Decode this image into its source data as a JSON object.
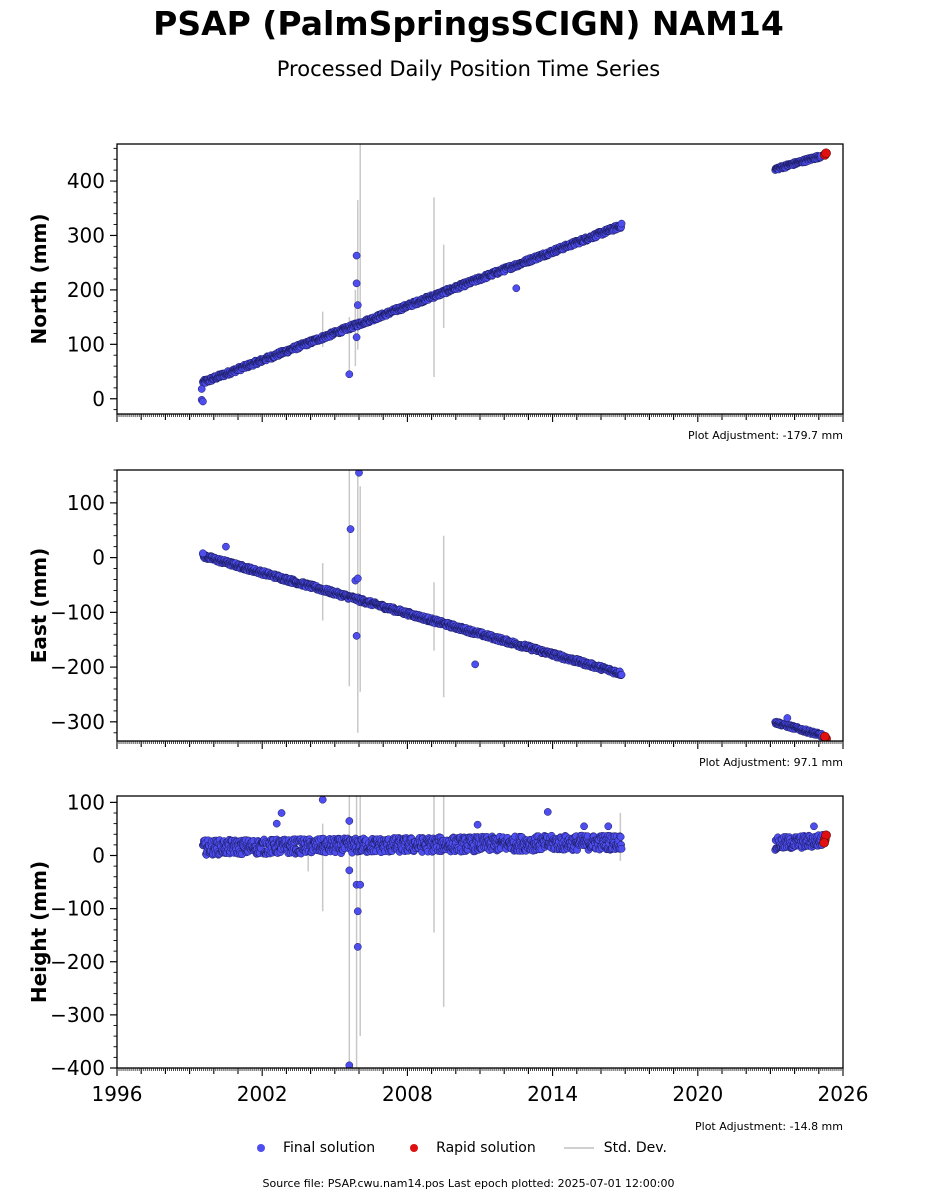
{
  "title": "PSAP (PalmSpringsSCIGN) NAM14",
  "subtitle": "Processed Daily Position Time Series",
  "colors": {
    "final": "#4d4df0",
    "final_edge": "#1a1a5a",
    "rapid": "#e01010",
    "std": "#c8c8c8"
  },
  "legend": {
    "final": "Final solution",
    "rapid": "Rapid solution",
    "std": "Std. Dev."
  },
  "footer": "Source file: PSAP.cwu.nam14.pos  Last epoch plotted: 2025-07-01 12:00:00",
  "chart_data": [
    {
      "type": "scatter",
      "ylabel": "North (mm)",
      "ylim": [
        -28,
        468
      ],
      "yticks": [
        0,
        100,
        200,
        300,
        400
      ],
      "xlim": [
        1996,
        2026
      ],
      "show_xticklabels": false,
      "adjustment": "Plot Adjustment: -179.7 mm",
      "final_segments": [
        {
          "x0": 1999.55,
          "x1": 2016.85,
          "y0": 30,
          "y1": 318,
          "noise": 4
        },
        {
          "x0": 2023.2,
          "x1": 2025.1,
          "y0": 422,
          "y1": 446,
          "noise": 3
        }
      ],
      "final_points": [
        [
          1999.5,
          -2
        ],
        [
          1999.5,
          18
        ],
        [
          1999.55,
          -5
        ],
        [
          2005.6,
          45
        ],
        [
          2005.9,
          263
        ],
        [
          2005.9,
          212
        ],
        [
          2005.95,
          172
        ],
        [
          2005.9,
          113
        ],
        [
          2012.5,
          203
        ]
      ],
      "rapid_points": [
        [
          2025.25,
          448
        ],
        [
          2025.3,
          451
        ]
      ],
      "std_bars": [
        [
          2005.6,
          40,
          150
        ],
        [
          2005.95,
          90,
          365
        ],
        [
          2006.05,
          140,
          468
        ],
        [
          2005.85,
          60,
          200
        ],
        [
          2009.1,
          40,
          370
        ],
        [
          2009.5,
          130,
          283
        ],
        [
          2004.5,
          95,
          160
        ]
      ]
    },
    {
      "type": "scatter",
      "ylabel": "East (mm)",
      "ylim": [
        -335,
        160
      ],
      "yticks": [
        -300,
        -200,
        -100,
        0,
        100
      ],
      "xlim": [
        1996,
        2026
      ],
      "show_xticklabels": false,
      "adjustment": "Plot Adjustment: 97.1 mm",
      "final_segments": [
        {
          "x0": 1999.55,
          "x1": 2016.85,
          "y0": 3,
          "y1": -212,
          "noise": 4
        },
        {
          "x0": 2023.2,
          "x1": 2025.15,
          "y0": -301,
          "y1": -325,
          "noise": 3
        }
      ],
      "final_points": [
        [
          1999.55,
          8
        ],
        [
          2000.5,
          20
        ],
        [
          2005.65,
          52
        ],
        [
          2006.0,
          155
        ],
        [
          2005.85,
          -42
        ],
        [
          2005.95,
          -38
        ],
        [
          2005.9,
          -143
        ],
        [
          2010.8,
          -195
        ],
        [
          2023.7,
          -293
        ]
      ],
      "rapid_points": [
        [
          2025.3,
          -331
        ],
        [
          2025.25,
          -327
        ]
      ],
      "std_bars": [
        [
          2005.6,
          -235,
          160
        ],
        [
          2005.95,
          -320,
          160
        ],
        [
          2006.05,
          -245,
          130
        ],
        [
          2009.1,
          -170,
          -45
        ],
        [
          2009.5,
          -255,
          40
        ],
        [
          2004.5,
          -115,
          -10
        ]
      ]
    },
    {
      "type": "scatter",
      "ylabel": "Height (mm)",
      "ylim": [
        -400,
        112
      ],
      "yticks": [
        -400,
        -300,
        -200,
        -100,
        0,
        100
      ],
      "xlim": [
        1996,
        2026
      ],
      "xticks": [
        1996,
        2002,
        2008,
        2014,
        2020,
        2026
      ],
      "show_xticklabels": true,
      "adjustment": "Plot Adjustment: -14.8 mm",
      "final_segments": [
        {
          "x0": 1999.55,
          "x1": 2016.85,
          "y0": 15,
          "y1": 25,
          "noise": 14
        },
        {
          "x0": 2023.2,
          "x1": 2025.15,
          "y0": 22,
          "y1": 28,
          "noise": 12
        }
      ],
      "final_points": [
        [
          2002.8,
          80
        ],
        [
          2002.6,
          60
        ],
        [
          2004.5,
          105
        ],
        [
          2005.6,
          65
        ],
        [
          2005.6,
          -28
        ],
        [
          2005.6,
          -395
        ],
        [
          2005.9,
          -55
        ],
        [
          2005.95,
          -105
        ],
        [
          2005.95,
          -172
        ],
        [
          2006.05,
          -55
        ],
        [
          2010.9,
          58
        ],
        [
          2013.8,
          82
        ],
        [
          2015.3,
          55
        ],
        [
          2016.3,
          55
        ],
        [
          2024.8,
          55
        ]
      ],
      "rapid_points": [
        [
          2025.25,
          30
        ],
        [
          2025.3,
          38
        ],
        [
          2025.22,
          24
        ]
      ],
      "std_bars": [
        [
          2005.6,
          -400,
          112
        ],
        [
          2005.9,
          -400,
          112
        ],
        [
          2006.05,
          -340,
          112
        ],
        [
          2009.1,
          -145,
          112
        ],
        [
          2009.5,
          -285,
          112
        ],
        [
          2004.5,
          -105,
          60
        ],
        [
          2003.9,
          -30,
          30
        ],
        [
          2016.8,
          -10,
          80
        ]
      ]
    }
  ]
}
